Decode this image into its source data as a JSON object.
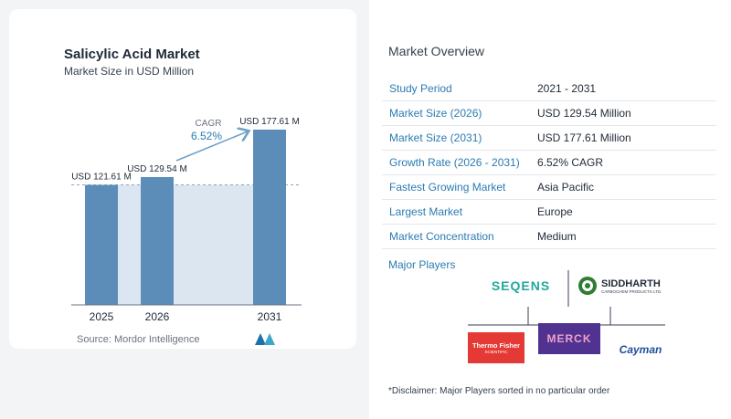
{
  "chart_data": {
    "type": "bar",
    "title": "Salicylic Acid Market",
    "subtitle": "Market Size in USD Million",
    "categories": [
      "2025",
      "2026",
      "2031"
    ],
    "values": [
      121.61,
      129.54,
      177.61
    ],
    "data_labels": [
      "USD 121.61 M",
      "USD 129.54 M",
      "USD 177.61 M"
    ],
    "ylim": [
      0,
      177.61
    ],
    "cagr_label": "CAGR",
    "cagr_value": "6.52%",
    "bar_color": "#5b8db8",
    "band_color": "#dce6f0",
    "reference_line": "dashed at first bar value"
  },
  "source": "Source:  Mordor Intelligence",
  "overview": {
    "title": "Market Overview",
    "rows": [
      {
        "label": "Study Period",
        "value": "2021 - 2031"
      },
      {
        "label": "Market Size (2026)",
        "value": "USD 129.54 Million"
      },
      {
        "label": "Market Size (2031)",
        "value": "USD 177.61 Million"
      },
      {
        "label": "Growth Rate (2026 - 2031)",
        "value": "6.52% CAGR"
      },
      {
        "label": "Fastest Growing Market",
        "value": "Asia Pacific"
      },
      {
        "label": "Largest Market",
        "value": "Europe"
      },
      {
        "label": "Market Concentration",
        "value": "Medium"
      }
    ],
    "accent": "#2b7bb3"
  },
  "players": {
    "label": "Major Players",
    "logos": [
      "SEQENS",
      "SIDDHARTH",
      "CARBOCHEM PRODUCTS LTD.",
      "Thermo Fisher",
      "SCIENTIFIC",
      "MERCK",
      "Cayman"
    ]
  },
  "disclaimer": "*Disclaimer: Major Players sorted in no particular order"
}
